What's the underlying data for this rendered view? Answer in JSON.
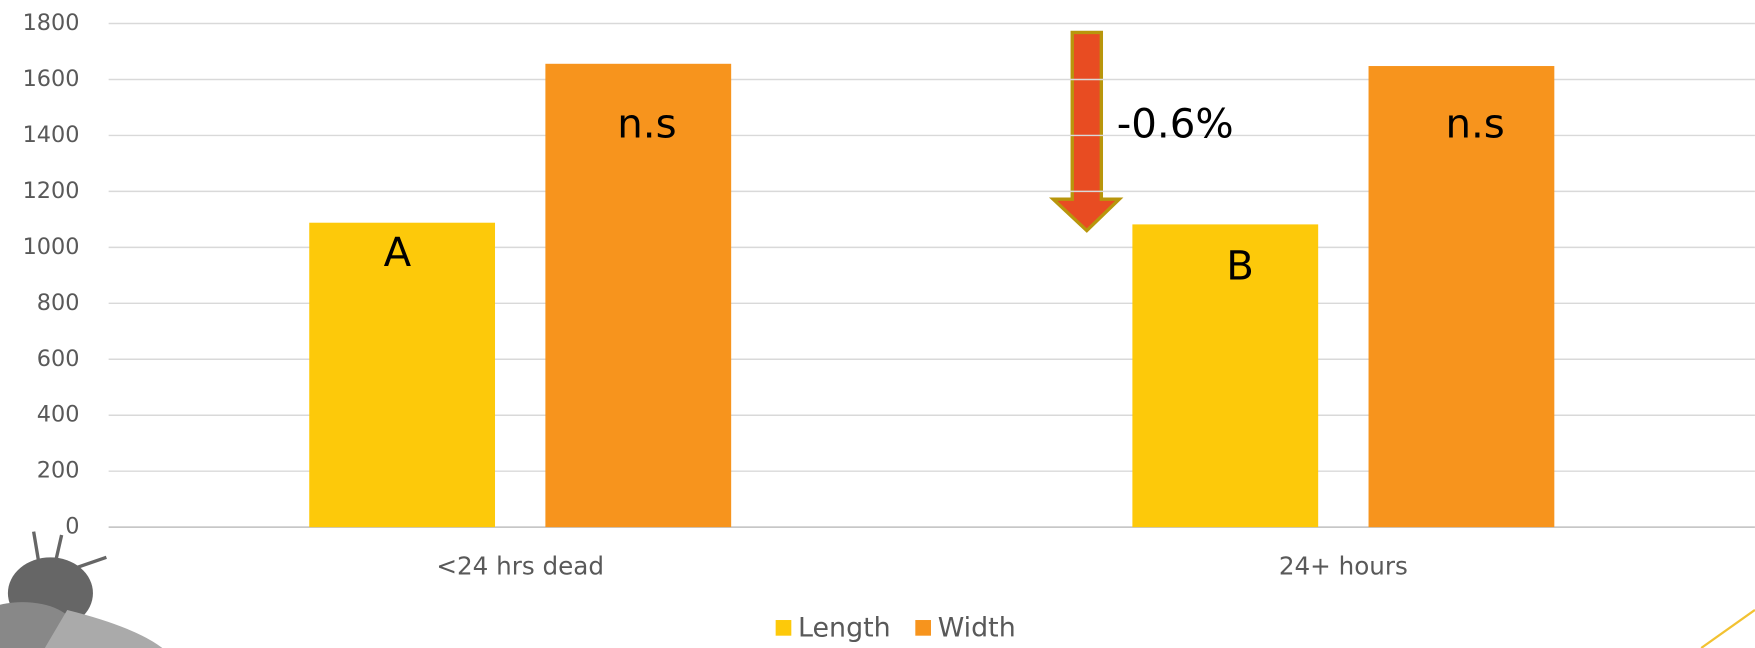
{
  "chart_data": {
    "type": "bar",
    "categories": [
      "<24 hrs dead",
      "24+ hours"
    ],
    "series": [
      {
        "name": "Length",
        "color": "#fdc90a",
        "values": [
          1088,
          1082
        ]
      },
      {
        "name": "Width",
        "color": "#f7941d",
        "values": [
          1656,
          1648
        ]
      }
    ],
    "ylim": [
      0,
      1800
    ],
    "yticks": [
      0,
      200,
      400,
      600,
      800,
      1000,
      1200,
      1400,
      1600,
      1800
    ],
    "grid": true,
    "legend": "bottom",
    "annotations": [
      "A",
      "n.s",
      "B",
      "n.s",
      "-0.6%"
    ]
  }
}
